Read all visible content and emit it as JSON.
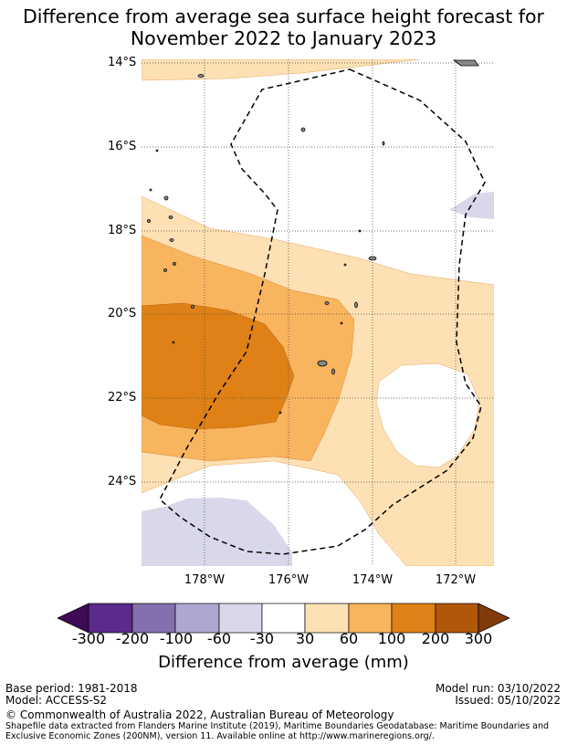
{
  "title_line1": "Difference from average sea surface height forecast for",
  "title_line2": "November 2022 to January 2023",
  "latitude_labels": [
    "14°S",
    "16°S",
    "18°S",
    "20°S",
    "22°S",
    "24°S"
  ],
  "longitude_labels": [
    "178°W",
    "176°W",
    "174°W",
    "172°W"
  ],
  "colorbar": {
    "title": "Difference from average (mm)",
    "ticks": [
      "-300",
      "-200",
      "-100",
      "-60",
      "-30",
      "30",
      "60",
      "100",
      "200",
      "300"
    ],
    "colors": [
      "#3f0a56",
      "#5b2a8b",
      "#8470ae",
      "#b0a7d0",
      "#d8d8ea",
      "#ffffff",
      "#fde0b3",
      "#f9b45e",
      "#df8116",
      "#b15709",
      "#7f3c0a"
    ]
  },
  "footer": {
    "base_period": "Base period: 1981-2018",
    "model": "Model: ACCESS-S2",
    "model_run": "Model run: 03/10/2022",
    "issued": "Issued: 05/10/2022",
    "copyright": "© Commonwealth of Australia 2022, Australian Bureau of Meteorology",
    "shapefile_line1": "Shapefile data extracted from Flanders Marine Institute (2019), Maritime Boundaries Geodatabase: Maritime Boundaries and",
    "shapefile_line2": "Exclusive Economic Zones (200NM), version 11. Available online at http://www.marineregions.org/."
  }
}
